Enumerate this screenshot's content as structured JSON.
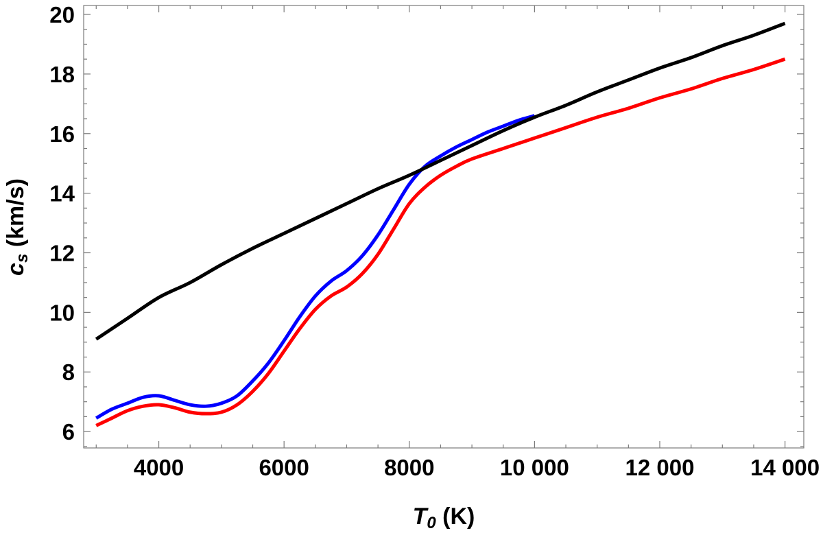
{
  "chart_data": {
    "type": "line",
    "xlabel": {
      "main": "T",
      "sub": "0",
      "unit": " (K)"
    },
    "ylabel": {
      "main": "c",
      "sub": "s",
      "unit": " (km/s)"
    },
    "xlim": [
      2800,
      14300
    ],
    "ylim": [
      5.45,
      20.3
    ],
    "xticks": [
      {
        "value": 4000,
        "label": "4000"
      },
      {
        "value": 6000,
        "label": "6000"
      },
      {
        "value": 8000,
        "label": "8000"
      },
      {
        "value": 10000,
        "label": "10 000"
      },
      {
        "value": 12000,
        "label": "12 000"
      },
      {
        "value": 14000,
        "label": "14 000"
      }
    ],
    "yticks": [
      {
        "value": 6,
        "label": "6"
      },
      {
        "value": 8,
        "label": "8"
      },
      {
        "value": 10,
        "label": "10"
      },
      {
        "value": 12,
        "label": "12"
      },
      {
        "value": 14,
        "label": "14"
      },
      {
        "value": 16,
        "label": "16"
      },
      {
        "value": 18,
        "label": "18"
      },
      {
        "value": 20,
        "label": "20"
      }
    ],
    "x_minor_step": 500,
    "y_minor_step": 0.5,
    "grid": false,
    "legend": "none",
    "series": [
      {
        "color": "#000000",
        "x": [
          3000,
          3500,
          4000,
          4500,
          5000,
          5500,
          6000,
          6500,
          7000,
          7500,
          8000,
          8500,
          9000,
          9500,
          10000,
          10500,
          11000,
          11500,
          12000,
          12500,
          13000,
          13500,
          14000
        ],
        "y": [
          9.1,
          9.8,
          10.5,
          11.0,
          11.6,
          12.15,
          12.65,
          13.15,
          13.65,
          14.15,
          14.6,
          15.1,
          15.6,
          16.1,
          16.55,
          16.95,
          17.4,
          17.8,
          18.2,
          18.55,
          18.95,
          19.3,
          19.7
        ]
      },
      {
        "color": "#0000ff",
        "x": [
          3000,
          3250,
          3500,
          3750,
          4000,
          4250,
          4500,
          4750,
          5000,
          5250,
          5500,
          5750,
          6000,
          6250,
          6500,
          6750,
          7000,
          7250,
          7500,
          7750,
          8000,
          8250,
          8500,
          8750,
          9000,
          9250,
          9500,
          9750,
          10000
        ],
        "y": [
          6.45,
          6.75,
          6.95,
          7.15,
          7.2,
          7.05,
          6.9,
          6.85,
          6.95,
          7.2,
          7.7,
          8.3,
          9.05,
          9.85,
          10.55,
          11.05,
          11.4,
          11.9,
          12.6,
          13.45,
          14.3,
          14.9,
          15.25,
          15.55,
          15.8,
          16.05,
          16.25,
          16.45,
          16.6
        ]
      },
      {
        "color": "#ff0000",
        "x": [
          3000,
          3250,
          3500,
          3750,
          4000,
          4250,
          4500,
          4750,
          5000,
          5250,
          5500,
          5750,
          6000,
          6250,
          6500,
          6750,
          7000,
          7250,
          7500,
          7750,
          8000,
          8250,
          8500,
          8750,
          9000,
          9500,
          10000,
          10500,
          11000,
          11500,
          12000,
          12500,
          13000,
          13500,
          14000
        ],
        "y": [
          6.2,
          6.45,
          6.7,
          6.85,
          6.9,
          6.8,
          6.65,
          6.6,
          6.65,
          6.9,
          7.35,
          7.95,
          8.7,
          9.45,
          10.1,
          10.55,
          10.85,
          11.3,
          11.95,
          12.8,
          13.65,
          14.2,
          14.6,
          14.9,
          15.15,
          15.5,
          15.85,
          16.2,
          16.55,
          16.85,
          17.2,
          17.5,
          17.85,
          18.15,
          18.5
        ]
      }
    ]
  }
}
